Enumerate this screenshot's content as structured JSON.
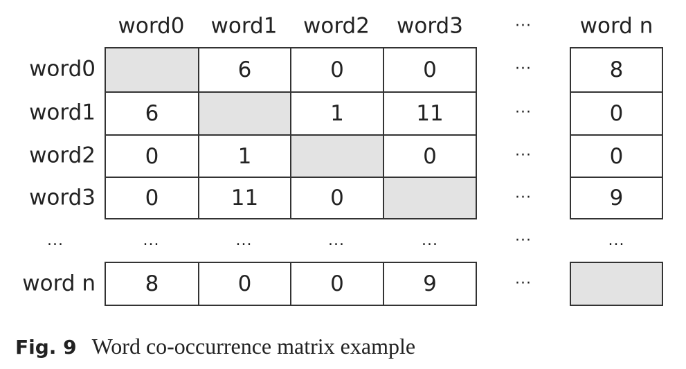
{
  "matrix": {
    "col_headers": [
      "word0",
      "word1",
      "word2",
      "word3",
      "···",
      "word n"
    ],
    "row_headers": [
      "word0",
      "word1",
      "word2",
      "word3",
      "...",
      "word n"
    ],
    "ellipsis_row": [
      "...",
      "...",
      "...",
      "...",
      "···",
      "..."
    ],
    "rows": [
      [
        "",
        "6",
        "0",
        "0",
        "···",
        "8"
      ],
      [
        "6",
        "",
        "1",
        "11",
        "···",
        "0"
      ],
      [
        "0",
        "1",
        "",
        "0",
        "···",
        "0"
      ],
      [
        "0",
        "11",
        "0",
        "",
        "···",
        "9"
      ],
      [
        "8",
        "0",
        "0",
        "9",
        "···",
        ""
      ]
    ]
  },
  "caption": {
    "label": "Fig. 9",
    "text": "Word co-occurrence matrix example"
  }
}
